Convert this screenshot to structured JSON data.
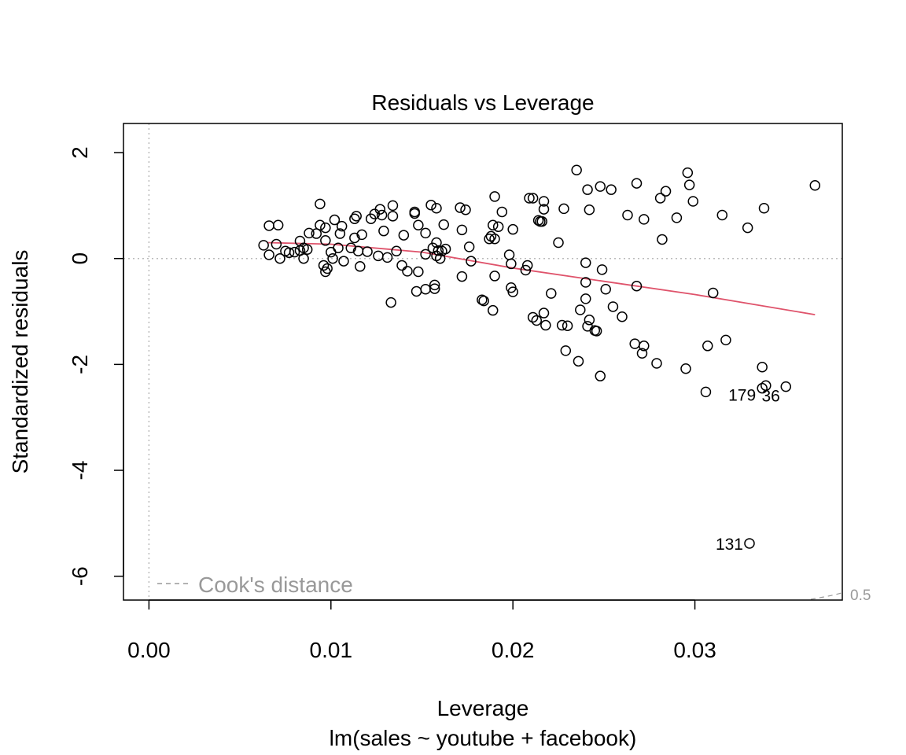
{
  "chart_data": {
    "type": "scatter",
    "title": "Residuals vs Leverage",
    "xlabel": "Leverage",
    "subtitle": "lm(sales ~ youtube + facebook)",
    "ylabel": "Standardized residuals",
    "xlim": [
      -0.0014,
      0.0381
    ],
    "ylim": [
      -6.45,
      2.55
    ],
    "x_ticks": [
      0.0,
      0.01,
      0.02,
      0.03
    ],
    "x_tick_labels": [
      "0.00",
      "0.01",
      "0.02",
      "0.03"
    ],
    "y_ticks": [
      2,
      0,
      -2,
      -4,
      -6
    ],
    "y_tick_labels": [
      "2",
      "0",
      "-2",
      "-4",
      "-6"
    ],
    "reference_lines": {
      "x": 0,
      "y": 0,
      "style": "dotted",
      "color": "#bbbbbb"
    },
    "colors": {
      "points": "#000000",
      "smooth": "#df536b",
      "reference": "#bbbbbb",
      "cooks": "#999999"
    },
    "legend": {
      "label": "Cook's distance",
      "position": "bottom-left"
    },
    "cooks_contour_label": "0.5",
    "point_labels": [
      {
        "text": "179",
        "x": 0.0337,
        "y": -2.45
      },
      {
        "text": "36",
        "x": 0.0339,
        "y": -2.4
      },
      {
        "text": "131",
        "x": 0.033,
        "y": -5.38
      }
    ],
    "smooth_line": {
      "x": [
        0.0065,
        0.01,
        0.015,
        0.02,
        0.025,
        0.03,
        0.0366
      ],
      "y": [
        0.3,
        0.27,
        0.12,
        -0.18,
        -0.43,
        -0.68,
        -1.06
      ]
    },
    "points": [
      [
        0.0063,
        0.25
      ],
      [
        0.0066,
        0.62
      ],
      [
        0.0066,
        0.07
      ],
      [
        0.007,
        0.27
      ],
      [
        0.0071,
        0.63
      ],
      [
        0.0072,
        0.0
      ],
      [
        0.0075,
        0.14
      ],
      [
        0.0077,
        0.11
      ],
      [
        0.008,
        0.12
      ],
      [
        0.0083,
        0.33
      ],
      [
        0.0083,
        0.15
      ],
      [
        0.0085,
        0.2
      ],
      [
        0.0085,
        0.0
      ],
      [
        0.0087,
        0.17
      ],
      [
        0.0088,
        0.48
      ],
      [
        0.0092,
        0.47
      ],
      [
        0.0094,
        1.03
      ],
      [
        0.0094,
        0.63
      ],
      [
        0.0096,
        -0.13
      ],
      [
        0.0097,
        -0.25
      ],
      [
        0.0097,
        0.58
      ],
      [
        0.0097,
        0.34
      ],
      [
        0.0098,
        -0.19
      ],
      [
        0.01,
        0.12
      ],
      [
        0.0101,
        0.0
      ],
      [
        0.0102,
        0.73
      ],
      [
        0.0104,
        0.2
      ],
      [
        0.0105,
        0.47
      ],
      [
        0.0106,
        0.61
      ],
      [
        0.0107,
        -0.05
      ],
      [
        0.0111,
        0.2
      ],
      [
        0.0113,
        0.75
      ],
      [
        0.0113,
        0.39
      ],
      [
        0.0114,
        0.8
      ],
      [
        0.0115,
        0.14
      ],
      [
        0.0116,
        -0.15
      ],
      [
        0.0117,
        0.45
      ],
      [
        0.012,
        0.13
      ],
      [
        0.0122,
        0.75
      ],
      [
        0.0124,
        0.84
      ],
      [
        0.0126,
        0.05
      ],
      [
        0.0127,
        0.93
      ],
      [
        0.0128,
        0.82
      ],
      [
        0.0129,
        0.52
      ],
      [
        0.0131,
        0.02
      ],
      [
        0.0133,
        -0.83
      ],
      [
        0.0134,
        1.0
      ],
      [
        0.0134,
        0.8
      ],
      [
        0.0136,
        0.14
      ],
      [
        0.0139,
        -0.13
      ],
      [
        0.014,
        0.44
      ],
      [
        0.0142,
        -0.24
      ],
      [
        0.0146,
        0.85
      ],
      [
        0.0146,
        0.88
      ],
      [
        0.0147,
        -0.62
      ],
      [
        0.0148,
        0.63
      ],
      [
        0.0148,
        -0.25
      ],
      [
        0.0152,
        0.08
      ],
      [
        0.0152,
        -0.58
      ],
      [
        0.0152,
        0.48
      ],
      [
        0.0155,
        1.01
      ],
      [
        0.0156,
        0.2
      ],
      [
        0.0157,
        -0.57
      ],
      [
        0.0157,
        -0.5
      ],
      [
        0.0158,
        0.95
      ],
      [
        0.0158,
        0.3
      ],
      [
        0.0158,
        0.05
      ],
      [
        0.0159,
        0.15
      ],
      [
        0.016,
        0.0
      ],
      [
        0.0161,
        0.14
      ],
      [
        0.0162,
        0.64
      ],
      [
        0.0163,
        0.18
      ],
      [
        0.0171,
        0.96
      ],
      [
        0.0172,
        0.54
      ],
      [
        0.0172,
        -0.34
      ],
      [
        0.0174,
        0.92
      ],
      [
        0.0176,
        0.22
      ],
      [
        0.0177,
        -0.05
      ],
      [
        0.0183,
        -0.78
      ],
      [
        0.0184,
        -0.8
      ],
      [
        0.0187,
        0.37
      ],
      [
        0.0188,
        0.42
      ],
      [
        0.0189,
        0.63
      ],
      [
        0.0189,
        -0.98
      ],
      [
        0.019,
        0.37
      ],
      [
        0.019,
        -0.33
      ],
      [
        0.019,
        1.17
      ],
      [
        0.0192,
        0.6
      ],
      [
        0.0194,
        0.88
      ],
      [
        0.0198,
        0.07
      ],
      [
        0.0199,
        -0.55
      ],
      [
        0.0199,
        -0.1
      ],
      [
        0.02,
        -0.63
      ],
      [
        0.02,
        0.55
      ],
      [
        0.0207,
        -0.22
      ],
      [
        0.0208,
        -0.13
      ],
      [
        0.0209,
        1.14
      ],
      [
        0.0211,
        1.14
      ],
      [
        0.0211,
        -1.11
      ],
      [
        0.0213,
        -1.17
      ],
      [
        0.0214,
        0.72
      ],
      [
        0.0215,
        0.7
      ],
      [
        0.0216,
        0.7
      ],
      [
        0.0217,
        0.93
      ],
      [
        0.0217,
        1.08
      ],
      [
        0.0217,
        -1.03
      ],
      [
        0.0218,
        -1.26
      ],
      [
        0.0221,
        -0.66
      ],
      [
        0.0225,
        0.3
      ],
      [
        0.0227,
        -1.26
      ],
      [
        0.0228,
        0.94
      ],
      [
        0.0229,
        -1.74
      ],
      [
        0.023,
        -1.27
      ],
      [
        0.0235,
        1.67
      ],
      [
        0.0236,
        -1.94
      ],
      [
        0.0237,
        -0.97
      ],
      [
        0.024,
        -0.76
      ],
      [
        0.024,
        -0.45
      ],
      [
        0.024,
        -0.08
      ],
      [
        0.0241,
        1.3
      ],
      [
        0.0241,
        -1.28
      ],
      [
        0.0242,
        -1.16
      ],
      [
        0.0242,
        0.92
      ],
      [
        0.0245,
        -1.36
      ],
      [
        0.0246,
        -1.37
      ],
      [
        0.0248,
        -2.22
      ],
      [
        0.0248,
        1.36
      ],
      [
        0.0249,
        -0.21
      ],
      [
        0.0251,
        -0.58
      ],
      [
        0.0254,
        1.3
      ],
      [
        0.0255,
        -0.91
      ],
      [
        0.026,
        -1.1
      ],
      [
        0.0263,
        0.82
      ],
      [
        0.0267,
        -1.61
      ],
      [
        0.0268,
        -0.52
      ],
      [
        0.0268,
        1.42
      ],
      [
        0.0271,
        -1.79
      ],
      [
        0.0272,
        -1.65
      ],
      [
        0.0272,
        0.74
      ],
      [
        0.0279,
        -1.98
      ],
      [
        0.0281,
        1.14
      ],
      [
        0.0282,
        0.36
      ],
      [
        0.0284,
        1.27
      ],
      [
        0.029,
        0.77
      ],
      [
        0.0295,
        -2.08
      ],
      [
        0.0296,
        1.62
      ],
      [
        0.0297,
        1.39
      ],
      [
        0.0299,
        1.08
      ],
      [
        0.0306,
        -2.52
      ],
      [
        0.0307,
        -1.65
      ],
      [
        0.031,
        -0.65
      ],
      [
        0.0315,
        0.82
      ],
      [
        0.0317,
        -1.54
      ],
      [
        0.0329,
        0.58
      ],
      [
        0.033,
        -5.38
      ],
      [
        0.0337,
        -2.05
      ],
      [
        0.0337,
        -2.45
      ],
      [
        0.0338,
        0.95
      ],
      [
        0.0339,
        -2.4
      ],
      [
        0.035,
        -2.42
      ],
      [
        0.0366,
        1.38
      ]
    ]
  }
}
